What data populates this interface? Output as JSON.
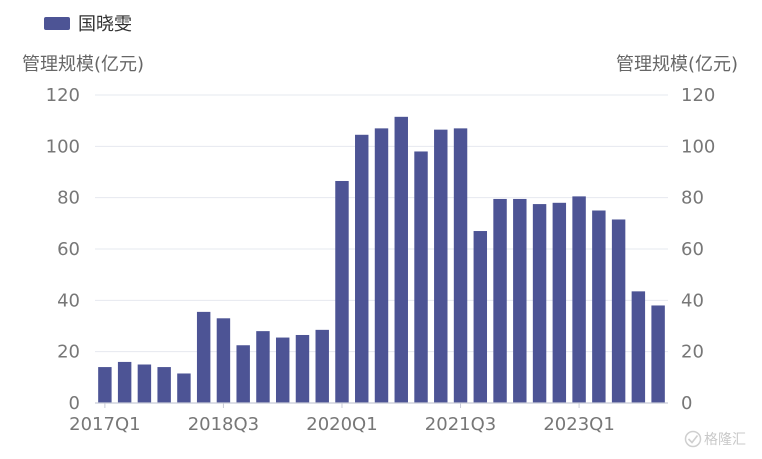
{
  "chart_data": {
    "type": "bar",
    "series": [
      {
        "name": "国晓雯",
        "values": [
          14.0,
          16.0,
          15.0,
          14.0,
          11.5,
          35.5,
          33.0,
          22.5,
          28.0,
          25.5,
          26.5,
          28.5,
          86.5,
          104.5,
          107.0,
          111.5,
          98.0,
          106.5,
          107.0,
          67.0,
          79.5,
          79.5,
          77.5,
          78.0,
          80.5,
          75.0,
          71.5,
          43.5,
          38.0
        ]
      }
    ],
    "categories": [
      "2017Q1",
      "2017Q2",
      "2017Q3",
      "2017Q4",
      "2018Q1",
      "2018Q2",
      "2018Q3",
      "2018Q4",
      "2019Q1",
      "2019Q2",
      "2019Q3",
      "2019Q4",
      "2020Q1",
      "2020Q2",
      "2020Q3",
      "2020Q4",
      "2021Q1",
      "2021Q2",
      "2021Q3",
      "2021Q4",
      "2022Q1",
      "2022Q2",
      "2022Q3",
      "2022Q4",
      "2023Q1",
      "2023Q2",
      "2023Q3",
      "2023Q4",
      "2024Q1"
    ],
    "x_tick_labels": [
      "2017Q1",
      "2018Q3",
      "2020Q1",
      "2021Q3",
      "2023Q1"
    ],
    "y_ticks": [
      0,
      20,
      40,
      60,
      80,
      100,
      120
    ],
    "ylabel_left": "管理规模(亿元)",
    "ylabel_right": "管理规模(亿元)",
    "ylim": [
      0,
      120
    ],
    "grid": true,
    "legend": "top-left",
    "bar_color": "#4d5495",
    "watermark": "格隆汇"
  }
}
